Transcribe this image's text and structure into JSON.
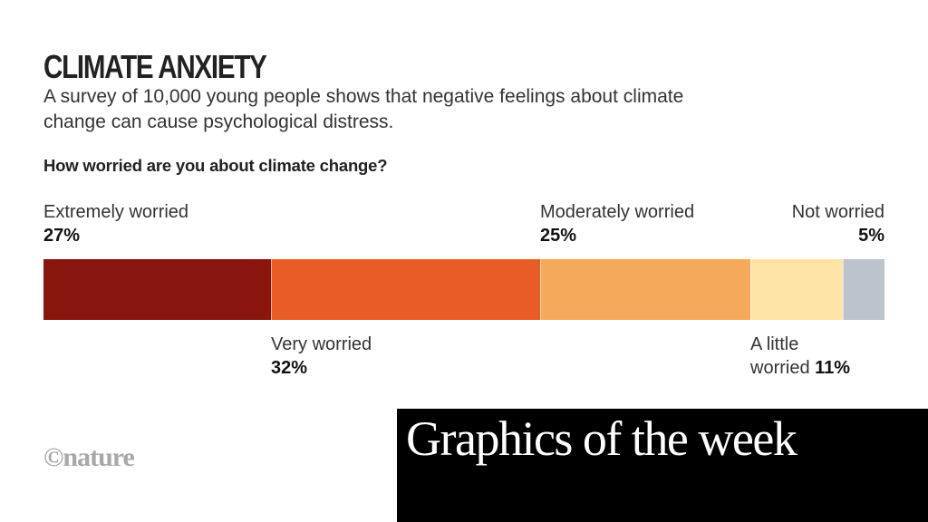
{
  "title": "CLIMATE ANXIETY",
  "subtitle": "A survey of 10,000 young people shows that negative feelings about climate change can cause psychological distress.",
  "question": "How worried are you about climate change?",
  "logo": "©nature",
  "banner": "Graphics of the week",
  "chart_data": {
    "type": "bar",
    "orientation": "horizontal-stacked",
    "title": "How worried are you about climate change?",
    "unit": "%",
    "total": 100,
    "categories": [
      "Extremely worried",
      "Very worried",
      "Moderately worried",
      "A little worried",
      "Not worried"
    ],
    "values": [
      27,
      32,
      25,
      11,
      5
    ],
    "colors": [
      "#88160e",
      "#e95c27",
      "#f5a95a",
      "#ffe4a8",
      "#bcc3cc"
    ],
    "labels": [
      {
        "name": "Extremely worried",
        "pct": "27%",
        "position": "above"
      },
      {
        "name": "Very worried",
        "pct": "32%",
        "position": "below"
      },
      {
        "name": "Moderately worried",
        "pct": "25%",
        "position": "above"
      },
      {
        "name_line1": "A little",
        "name_line2": "worried",
        "pct": "11%",
        "position": "below"
      },
      {
        "name": "Not worried",
        "pct": "5%",
        "position": "above"
      }
    ]
  }
}
